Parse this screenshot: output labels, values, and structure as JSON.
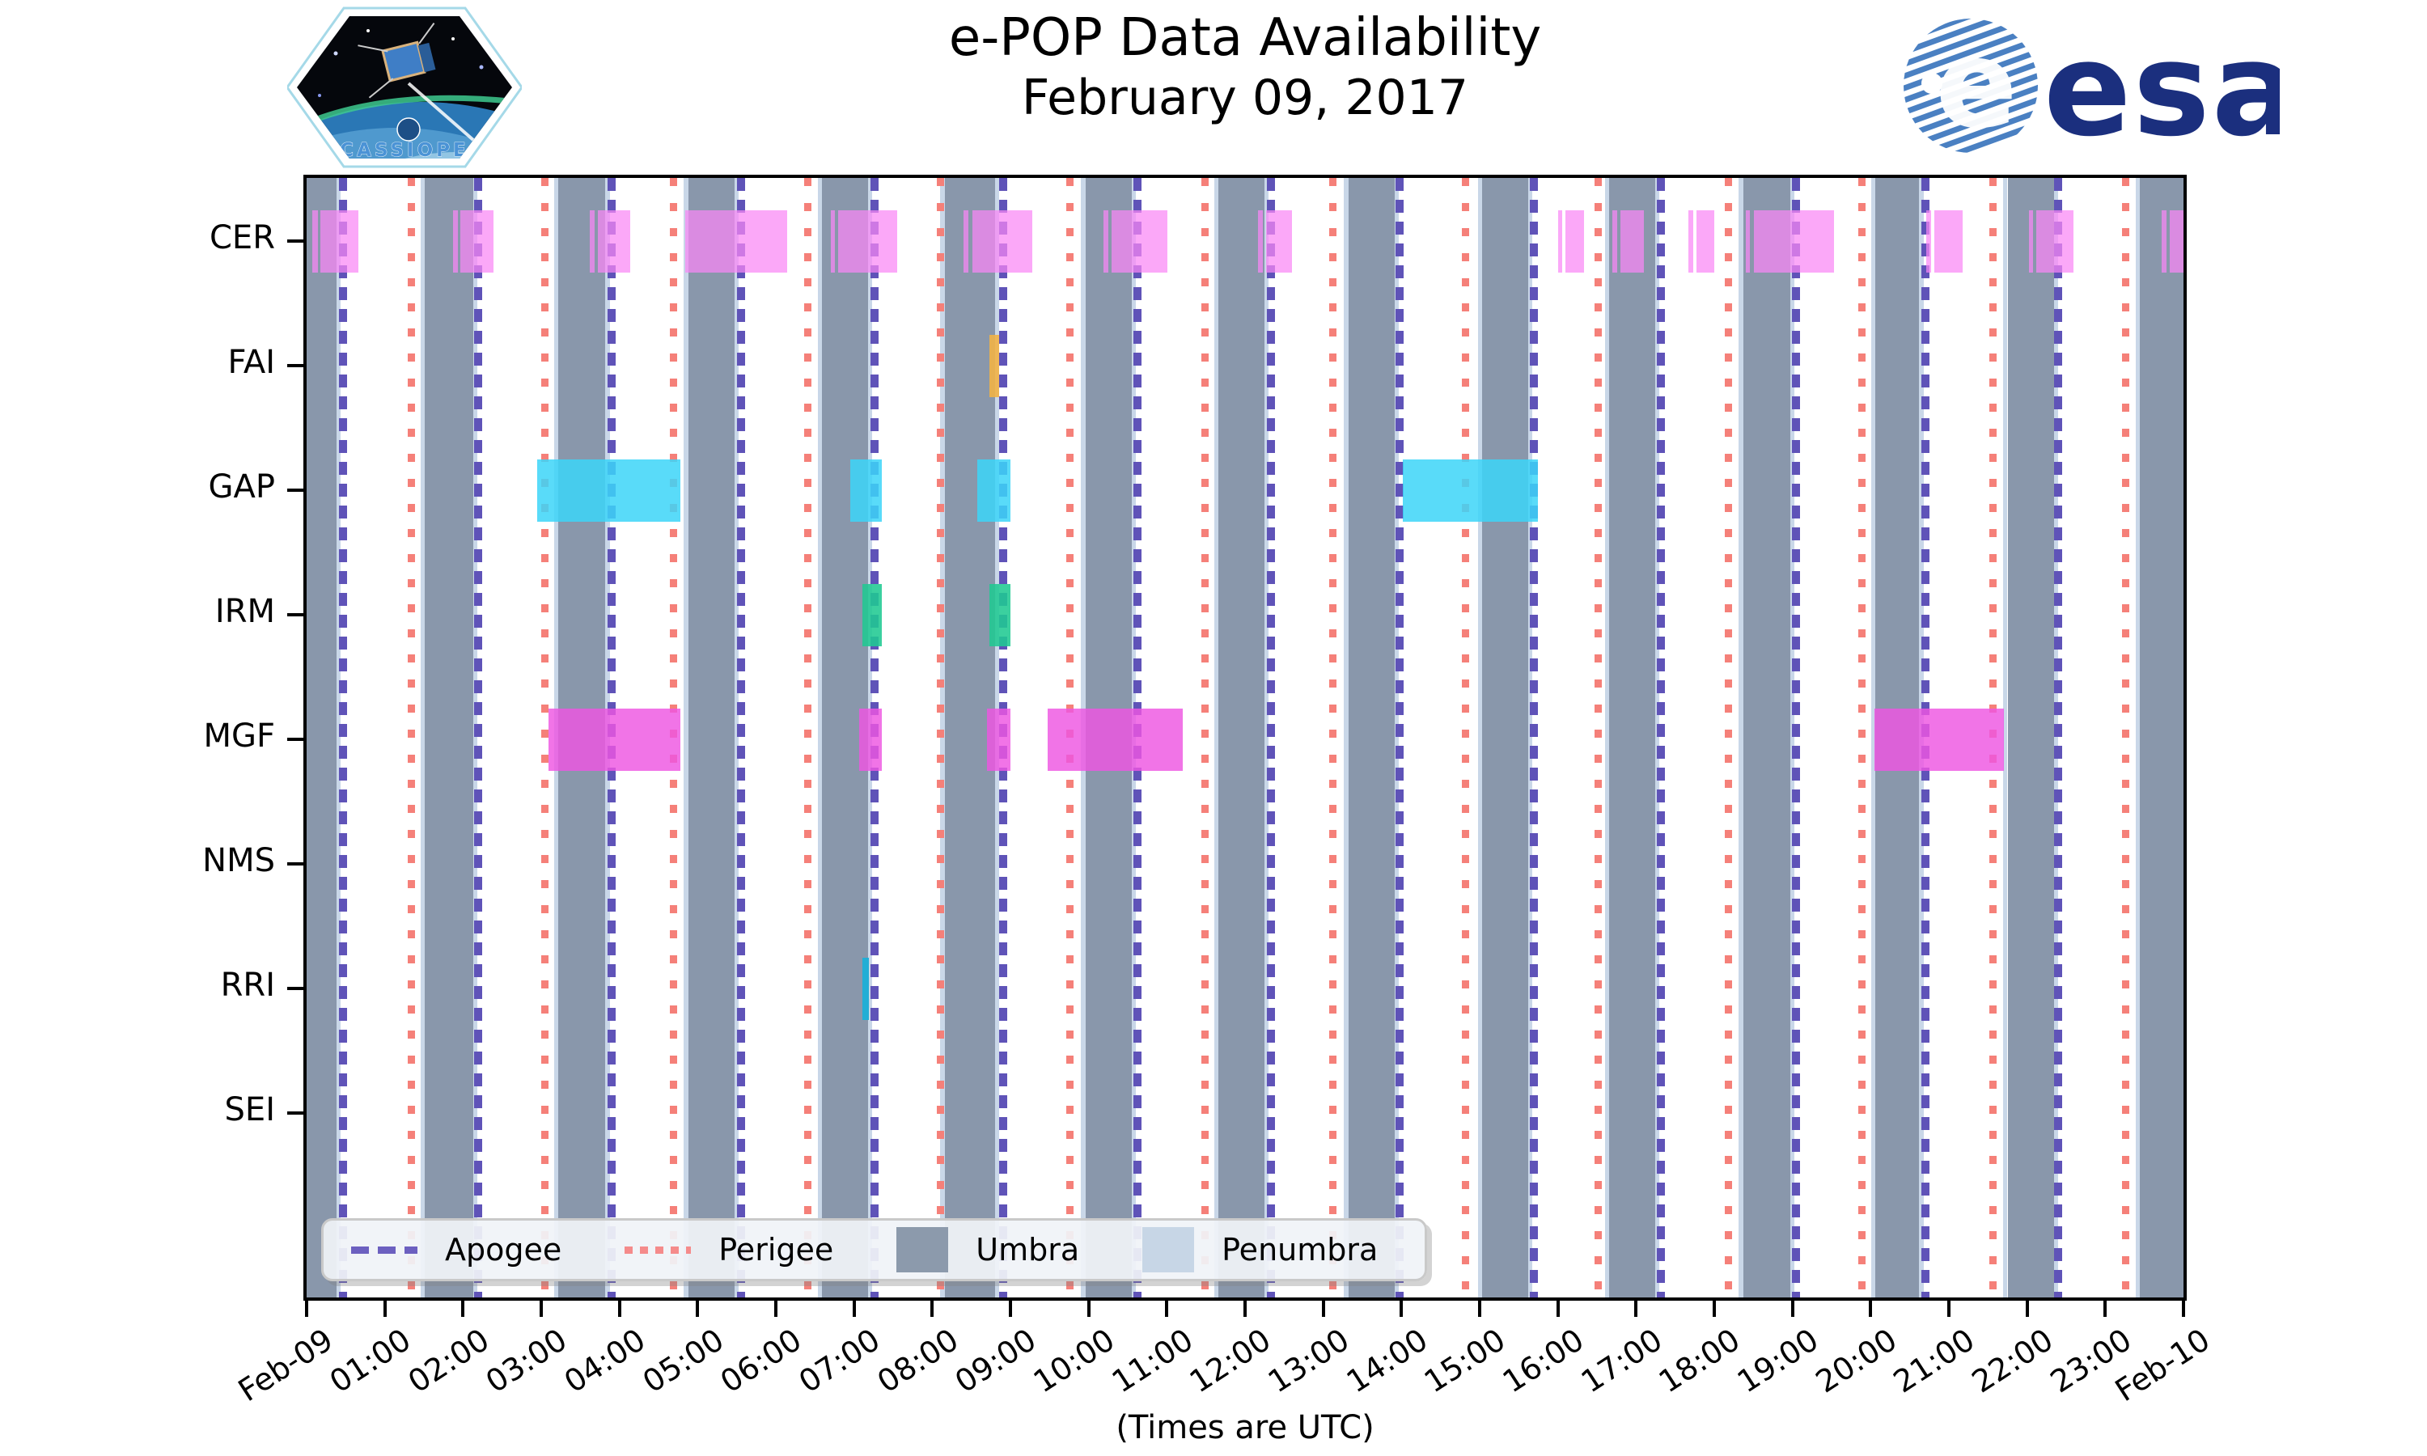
{
  "header": {
    "title": "e-POP Data Availability",
    "subtitle": "February 09, 2017",
    "cassiope_label": "CASSIOPE",
    "esa_label": "esa"
  },
  "chart_data": {
    "type": "timeline-availability",
    "title": "e-POP Data Availability",
    "subtitle": "February 09, 2017",
    "x_axis": {
      "label": "(Times are UTC)",
      "range_hours": [
        0,
        24
      ],
      "tick_labels": [
        "Feb-09",
        "01:00",
        "02:00",
        "03:00",
        "04:00",
        "05:00",
        "06:00",
        "07:00",
        "08:00",
        "09:00",
        "10:00",
        "11:00",
        "12:00",
        "13:00",
        "14:00",
        "15:00",
        "16:00",
        "17:00",
        "18:00",
        "19:00",
        "20:00",
        "21:00",
        "22:00",
        "23:00",
        "Feb-10"
      ]
    },
    "y_axis": {
      "categories": [
        "CER",
        "FAI",
        "GAP",
        "IRM",
        "MGF",
        "NMS",
        "RRI",
        "SEI"
      ]
    },
    "legend": {
      "items": [
        {
          "label": "Apogee",
          "type": "line-dashed",
          "color": "#6c60c0"
        },
        {
          "label": "Perigee",
          "type": "line-dotted",
          "color": "#f58b8b"
        },
        {
          "label": "Umbra",
          "type": "patch",
          "color": "#8c9aac"
        },
        {
          "label": "Penumbra",
          "type": "patch",
          "color": "#c7d6e6"
        }
      ]
    },
    "events": {
      "apogee_hours": [
        0.47,
        2.19,
        3.9,
        5.55,
        7.26,
        8.91,
        10.62,
        12.33,
        13.98,
        15.69,
        17.32,
        19.04,
        20.7,
        22.4
      ],
      "perigee_hours": [
        1.33,
        3.04,
        4.69,
        6.4,
        8.1,
        9.75,
        11.48,
        13.12,
        14.81,
        16.51,
        18.18,
        19.88,
        21.56,
        23.26
      ]
    },
    "umbra_hours": [
      [
        0.0,
        0.38
      ],
      [
        1.51,
        2.13
      ],
      [
        3.22,
        3.82
      ],
      [
        4.88,
        5.47
      ],
      [
        6.59,
        7.18
      ],
      [
        8.16,
        8.8
      ],
      [
        9.96,
        10.55
      ],
      [
        11.66,
        12.25
      ],
      [
        13.32,
        13.91
      ],
      [
        15.03,
        15.62
      ],
      [
        16.66,
        17.24
      ],
      [
        18.37,
        18.97
      ],
      [
        20.06,
        20.62
      ],
      [
        21.75,
        22.34
      ],
      [
        23.44,
        24.0
      ]
    ],
    "penumbra_halfwidth_hours": 0.055,
    "colors": {
      "umbra": "#8997ab",
      "penumbra": "#c9d7e8",
      "apogee": "#5f53b8",
      "perigee": "#f58079"
    },
    "series": [
      {
        "name": "CER",
        "color": "rgba(250,135,245,0.72)",
        "intervals": [
          [
            0.07,
            0.14
          ],
          [
            0.18,
            0.66
          ],
          [
            1.87,
            1.93
          ],
          [
            1.97,
            2.39
          ],
          [
            3.62,
            3.68
          ],
          [
            3.72,
            4.14
          ],
          [
            4.84,
            6.15
          ],
          [
            6.7,
            6.76
          ],
          [
            6.8,
            7.55
          ],
          [
            8.4,
            8.46
          ],
          [
            8.51,
            9.28
          ],
          [
            10.19,
            10.25
          ],
          [
            10.29,
            11.01
          ],
          [
            12.17,
            12.23
          ],
          [
            12.27,
            12.6
          ],
          [
            16.0,
            16.06
          ],
          [
            16.1,
            16.33
          ],
          [
            16.7,
            16.76
          ],
          [
            16.8,
            17.1
          ],
          [
            17.67,
            17.73
          ],
          [
            17.77,
            18.0
          ],
          [
            18.4,
            18.46
          ],
          [
            18.51,
            19.53
          ],
          [
            20.71,
            20.77
          ],
          [
            20.81,
            21.18
          ],
          [
            22.02,
            22.08
          ],
          [
            22.12,
            22.59
          ],
          [
            23.72,
            23.78
          ],
          [
            23.82,
            24.0
          ]
        ]
      },
      {
        "name": "FAI",
        "color": "rgba(242,178,70,0.9)",
        "intervals": [
          [
            8.73,
            8.86
          ]
        ]
      },
      {
        "name": "GAP",
        "color": "rgba(60,213,248,0.85)",
        "intervals": [
          [
            2.95,
            4.78
          ],
          [
            6.95,
            7.36
          ],
          [
            8.58,
            9.0
          ],
          [
            14.02,
            15.75
          ]
        ]
      },
      {
        "name": "IRM",
        "color": "rgba(32,201,146,0.88)",
        "intervals": [
          [
            7.11,
            7.36
          ],
          [
            8.73,
            9.0
          ]
        ]
      },
      {
        "name": "MGF",
        "color": "rgba(238,85,226,0.82)",
        "intervals": [
          [
            3.09,
            4.78
          ],
          [
            7.07,
            7.36
          ],
          [
            8.7,
            9.0
          ],
          [
            9.48,
            11.2
          ],
          [
            20.05,
            21.7
          ]
        ]
      },
      {
        "name": "NMS",
        "color": "rgba(238,85,226,0.82)",
        "intervals": []
      },
      {
        "name": "RRI",
        "color": "rgba(34,174,213,1)",
        "intervals": [
          [
            7.11,
            7.19
          ]
        ]
      },
      {
        "name": "SEI",
        "color": "rgba(34,174,213,1)",
        "intervals": []
      }
    ]
  }
}
